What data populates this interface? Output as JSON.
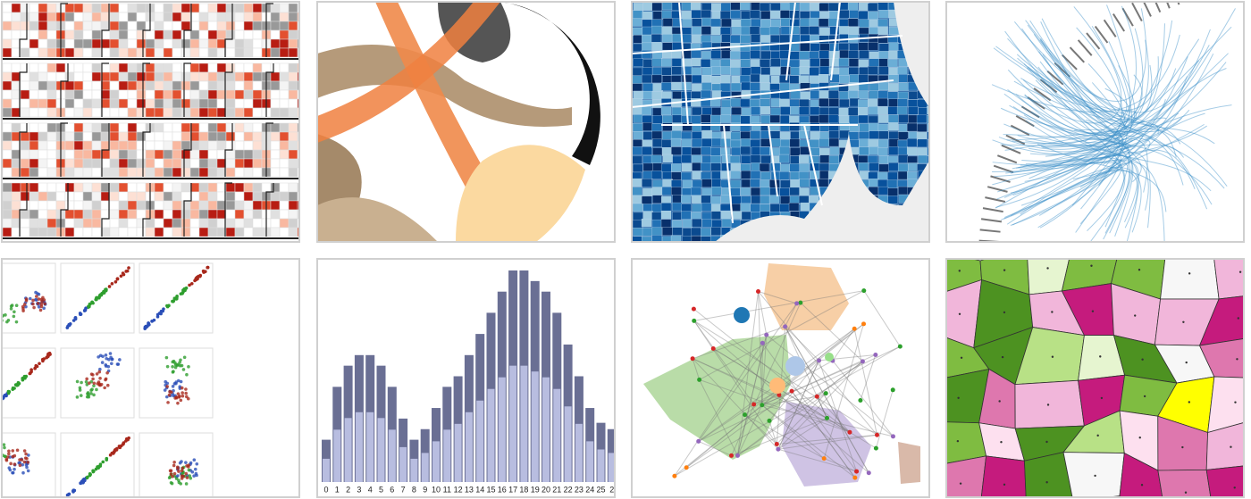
{
  "histogram": {
    "categories": [
      "0",
      "1",
      "2",
      "3",
      "4",
      "5",
      "6",
      "7",
      "8",
      "9",
      "10",
      "11",
      "12",
      "13",
      "14",
      "15",
      "16",
      "17",
      "18",
      "19",
      "20",
      "21",
      "22",
      "23",
      "24",
      "25",
      "2"
    ],
    "values": [
      20,
      45,
      55,
      60,
      60,
      55,
      45,
      30,
      20,
      25,
      35,
      45,
      50,
      60,
      70,
      80,
      90,
      100,
      100,
      95,
      90,
      80,
      65,
      50,
      35,
      28,
      25
    ]
  }
}
